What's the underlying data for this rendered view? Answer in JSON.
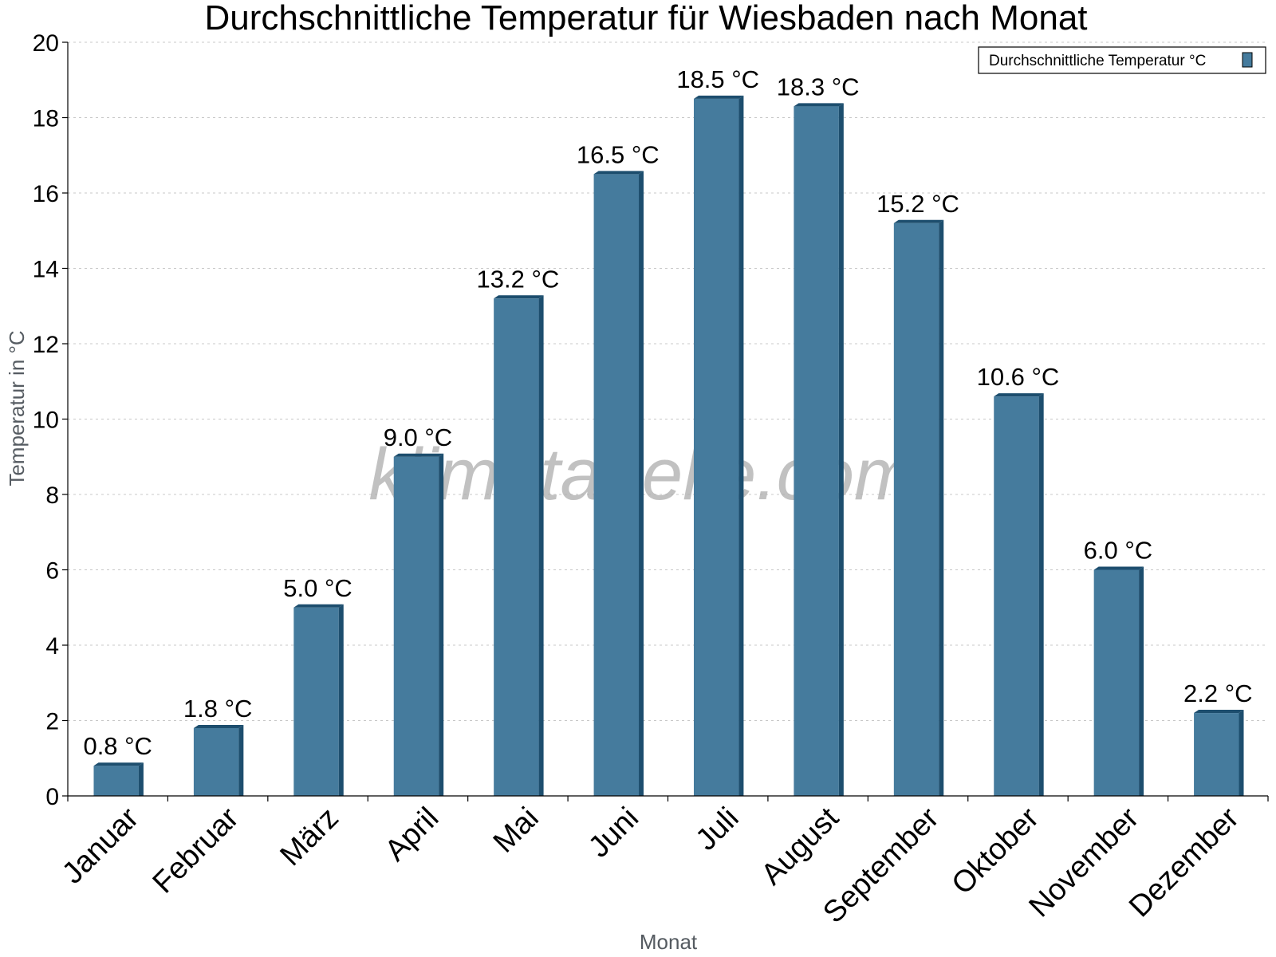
{
  "chart_data": {
    "type": "bar",
    "title": "Durchschnittliche Temperatur für Wiesbaden nach Monat",
    "xlabel": "Monat",
    "ylabel": "Temperatur in °C",
    "categories": [
      "Januar",
      "Februar",
      "März",
      "April",
      "Mai",
      "Juni",
      "Juli",
      "August",
      "September",
      "Oktober",
      "November",
      "Dezember"
    ],
    "series": [
      {
        "name": "Durchschnittliche Temperatur °C",
        "values": [
          0.8,
          1.8,
          5.0,
          9.0,
          13.2,
          16.5,
          18.5,
          18.3,
          15.2,
          10.6,
          6.0,
          2.2
        ],
        "labels": [
          "0.8 °C",
          "1.8 °C",
          "5.0 °C",
          "9.0 °C",
          "13.2 °C",
          "16.5 °C",
          "18.5 °C",
          "18.3 °C",
          "15.2 °C",
          "10.6 °C",
          "6.0 °C",
          "2.2 °C"
        ]
      }
    ],
    "ylim": [
      0,
      20
    ],
    "yticks": [
      "0",
      "2",
      "4",
      "6",
      "8",
      "10",
      "12",
      "14",
      "16",
      "18",
      "20"
    ],
    "grid": true,
    "legend_position": "top-right",
    "colors": {
      "bar": "#457b9d",
      "bar_side": "#1d4e6e",
      "grid": "#c8c8c8"
    }
  },
  "watermark": "klimatabelle.com"
}
